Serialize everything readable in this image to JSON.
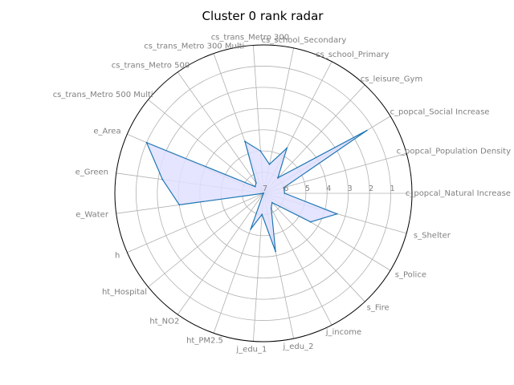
{
  "chart_data": {
    "type": "radar",
    "title": "Cluster 0 rank radar",
    "categories": [
      "c_popcal_Natural Increase",
      "c_popcal_Population Density",
      "c_popcal_Social Increase",
      "cs_leisure_Gym",
      "cs_school_Primary",
      "cs_school_Secondary",
      "cs_trans_Metro 300",
      "cs_trans_Metro 300 Multi",
      "cs_trans_Metro 500",
      "cs_trans_Metro 500 Multi",
      "e_Area",
      "e_Green",
      "e_Water",
      "h",
      "ht_Hospital",
      "ht_NO2",
      "ht_PM2.5",
      "j_edu_1",
      "j_edu_2",
      "j_income",
      "s_Fire",
      "s_Police",
      "s_Shelter"
    ],
    "values": [
      6.0,
      6.0,
      1.3,
      6.0,
      4.6,
      5.6,
      5.0,
      4.4,
      6.4,
      6.5,
      1.0,
      2.2,
      3.0,
      7.0,
      7.0,
      7.0,
      5.2,
      6.0,
      4.2,
      6.2,
      6.4,
      4.4,
      3.4
    ],
    "r_range": [
      7,
      0
    ],
    "r_ticks": [
      "1",
      "2",
      "3",
      "4",
      "5",
      "6",
      "7"
    ],
    "grid": true,
    "series_color": "#1f77b4",
    "fill_color": "#e0e0ff"
  }
}
